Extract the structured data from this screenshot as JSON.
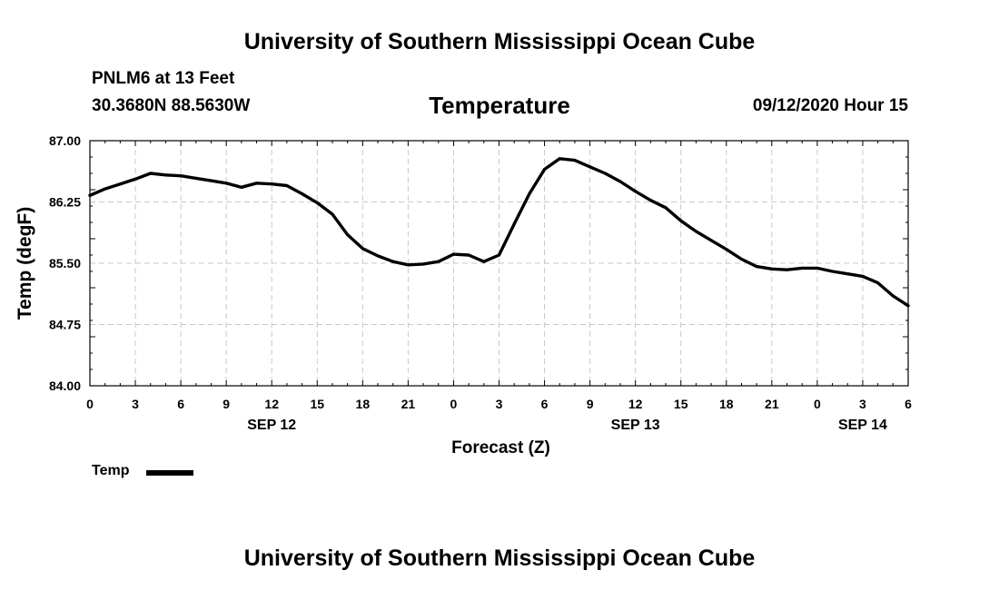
{
  "page": {
    "top_title": "University of Southern Mississippi Ocean Cube",
    "bottom_title": "University of Southern Mississippi Ocean Cube",
    "station_line": "PNLM6 at 13 Feet",
    "coords_line": "30.3680N 88.5630W",
    "timestamp": "09/12/2020 Hour 15"
  },
  "chart_data": {
    "type": "line",
    "title": "Temperature",
    "xlabel": "Forecast (Z)",
    "ylabel": "Temp (degF)",
    "ylim": [
      84.0,
      87.0
    ],
    "xlim": [
      0,
      54
    ],
    "grid": true,
    "y_ticks": [
      84.0,
      84.75,
      85.5,
      86.25,
      87.0
    ],
    "y_tick_labels": [
      "84.00",
      "84.75",
      "85.50",
      "86.25",
      "87.00"
    ],
    "x_ticks": [
      0,
      3,
      6,
      9,
      12,
      15,
      18,
      21,
      24,
      27,
      30,
      33,
      36,
      39,
      42,
      45,
      48,
      51,
      54
    ],
    "x_tick_labels": [
      "0",
      "3",
      "6",
      "9",
      "12",
      "15",
      "18",
      "21",
      "0",
      "3",
      "6",
      "9",
      "12",
      "15",
      "18",
      "21",
      "0",
      "3",
      "6"
    ],
    "date_labels": [
      {
        "x": 12,
        "label": "SEP 12"
      },
      {
        "x": 36,
        "label": "SEP 13"
      },
      {
        "x": 51,
        "label": "SEP 14"
      }
    ],
    "legend": {
      "position": "bottom-left",
      "label": "Temp"
    },
    "series": [
      {
        "name": "Temp",
        "color": "#000000",
        "x": [
          0,
          1,
          2,
          3,
          4,
          5,
          6,
          7,
          8,
          9,
          10,
          11,
          12,
          13,
          14,
          15,
          16,
          17,
          18,
          19,
          20,
          21,
          22,
          23,
          24,
          25,
          26,
          27,
          28,
          29,
          30,
          31,
          32,
          33,
          34,
          35,
          36,
          37,
          38,
          39,
          40,
          41,
          42,
          43,
          44,
          45,
          46,
          47,
          48,
          49,
          50,
          51,
          52,
          53,
          54
        ],
        "values": [
          86.33,
          86.41,
          86.47,
          86.53,
          86.6,
          86.58,
          86.57,
          86.54,
          86.51,
          86.48,
          86.43,
          86.48,
          86.47,
          86.45,
          86.35,
          86.24,
          86.1,
          85.85,
          85.68,
          85.59,
          85.52,
          85.48,
          85.49,
          85.52,
          85.61,
          85.6,
          85.52,
          85.6,
          85.98,
          86.35,
          86.65,
          86.78,
          86.76,
          86.68,
          86.6,
          86.5,
          86.38,
          86.27,
          86.18,
          86.02,
          85.89,
          85.78,
          85.67,
          85.55,
          85.46,
          85.43,
          85.42,
          85.44,
          85.44,
          85.4,
          85.37,
          85.34,
          85.26,
          85.1,
          84.98
        ]
      }
    ]
  }
}
